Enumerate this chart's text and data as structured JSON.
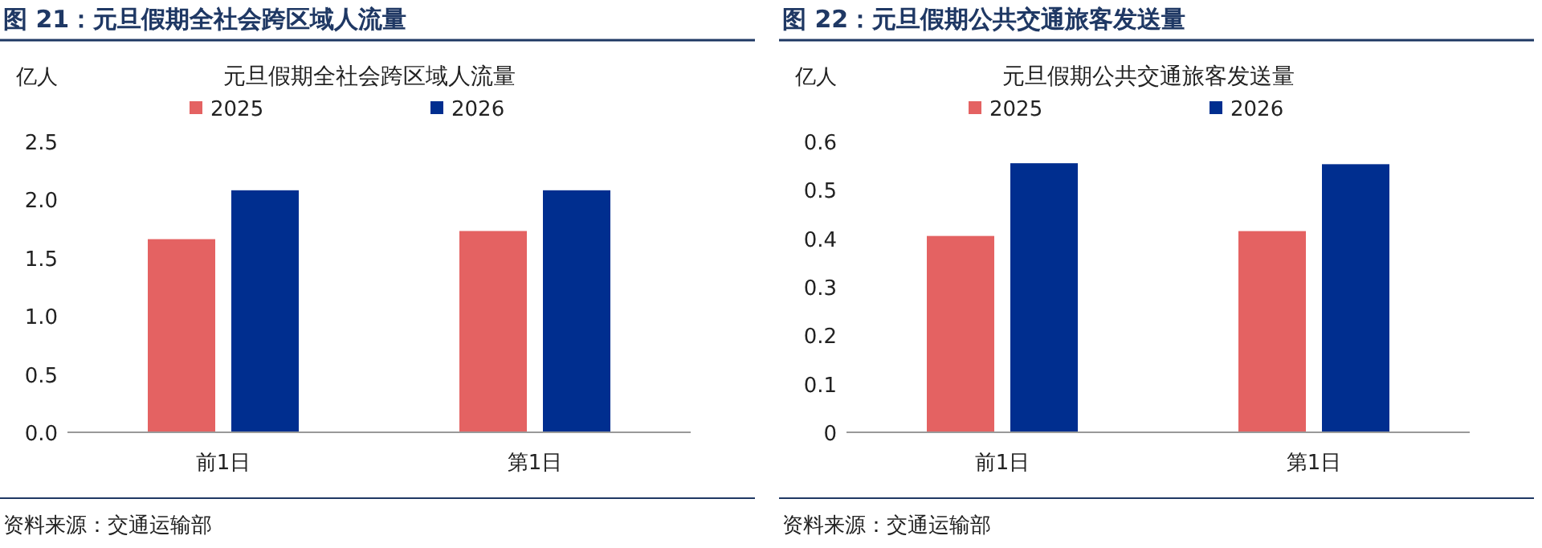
{
  "chart_data": [
    {
      "type": "bar",
      "title": "图 21：元旦假期全社会跨区域人流量",
      "subtitle": "元旦假期全社会跨区域人流量",
      "ylabel": "亿人",
      "categories": [
        "前1日",
        "第1日"
      ],
      "series": [
        {
          "name": "2025",
          "color": "#e46262",
          "values": [
            1.66,
            1.73
          ]
        },
        {
          "name": "2026",
          "color": "#002e8f",
          "values": [
            2.08,
            2.08
          ]
        }
      ],
      "ylim": [
        0,
        2.5
      ],
      "yticks": [
        {
          "value": 0,
          "label": "0.0"
        },
        {
          "value": 0.5,
          "label": "0.5"
        },
        {
          "value": 1,
          "label": "1.0"
        },
        {
          "value": 1.5,
          "label": "1.5"
        },
        {
          "value": 2,
          "label": "2.0"
        },
        {
          "value": 2.5,
          "label": "2.5"
        }
      ],
      "legend": "top",
      "annotations": [
        "资料来源：交通运输部"
      ]
    },
    {
      "type": "bar",
      "title": "图 22：元旦假期公共交通旅客发送量",
      "subtitle": "元旦假期公共交通旅客发送量",
      "ylabel": "亿人",
      "categories": [
        "前1日",
        "第1日"
      ],
      "series": [
        {
          "name": "2025",
          "color": "#e46262",
          "values": [
            0.405,
            0.415
          ]
        },
        {
          "name": "2026",
          "color": "#002e8f",
          "values": [
            0.555,
            0.553
          ]
        }
      ],
      "ylim": [
        0,
        0.6
      ],
      "yticks": [
        0,
        0.1,
        0.2,
        0.3,
        0.4,
        0.5,
        0.6
      ],
      "legend": "top",
      "annotations": [
        "资料来源：交通运输部"
      ]
    }
  ]
}
